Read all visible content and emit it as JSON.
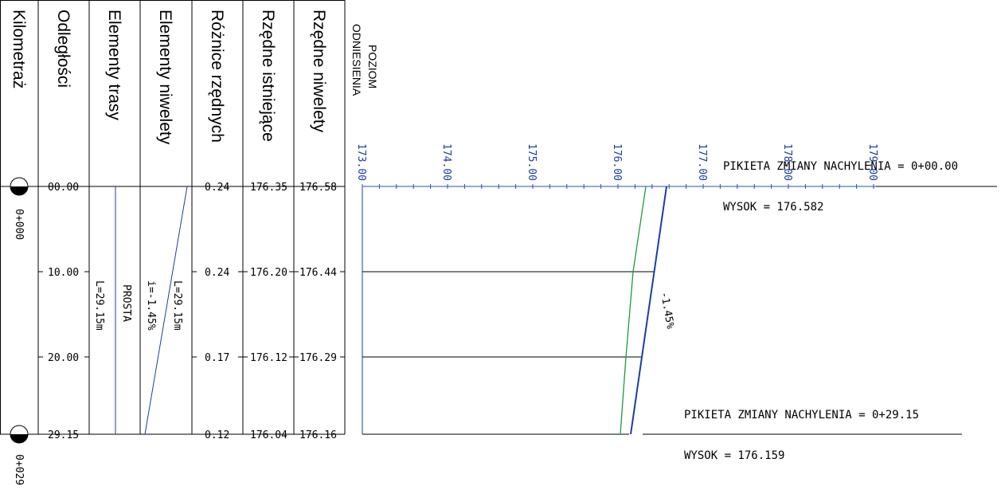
{
  "headers": {
    "kilometraz": "Kilometraż",
    "odleglosci": "Odległości",
    "elementy_trasy": "Elementy trasy",
    "elementy_niwelety": "Elementy niwelety",
    "roznice_rzednych": "Różnice rzędnych",
    "rzedne_istniejace": "Rzędne istniejące",
    "rzedne_niwelety": "Rzędne niwelety",
    "poziom_line1": "POZIOM",
    "poziom_line2": "ODNIESIENIA"
  },
  "stations": [
    {
      "label": "0+000"
    },
    {
      "label": "0+029"
    }
  ],
  "rows": [
    {
      "distance": "00.00",
      "diff": "0.24",
      "existing": "176.35",
      "grade": "176.58"
    },
    {
      "distance": "10.00",
      "diff": "0.24",
      "existing": "176.20",
      "grade": "176.44"
    },
    {
      "distance": "20.00",
      "diff": "0.17",
      "existing": "176.12",
      "grade": "176.29"
    },
    {
      "distance": "29.15",
      "diff": "0.12",
      "existing": "176.04",
      "grade": "176.16"
    }
  ],
  "route": {
    "length": "L=29.15m",
    "type": "PROSTA"
  },
  "grade_elements": {
    "slope": "i=-1.45%",
    "length": "L=29.15m"
  },
  "slope_label": "-1.45%",
  "scale_ticks": [
    "173.00",
    "174.00",
    "175.00",
    "176.00",
    "177.00",
    "178.00",
    "179.00"
  ],
  "notes": {
    "start_pikieta": "PIKIETA ZMIANY NACHYLENIA = 0+00.00",
    "start_wysok": "WYSOK =  176.582",
    "end_pikieta": "PIKIETA ZMIANY NACHYLENIA = 0+29.15",
    "end_wysok": "WYSOK =  176.159"
  },
  "colors": {
    "design_line": "#1a3fa0",
    "existing_line": "#1f9a3a",
    "scale": "#2b4fb5",
    "ink": "#000000"
  }
}
